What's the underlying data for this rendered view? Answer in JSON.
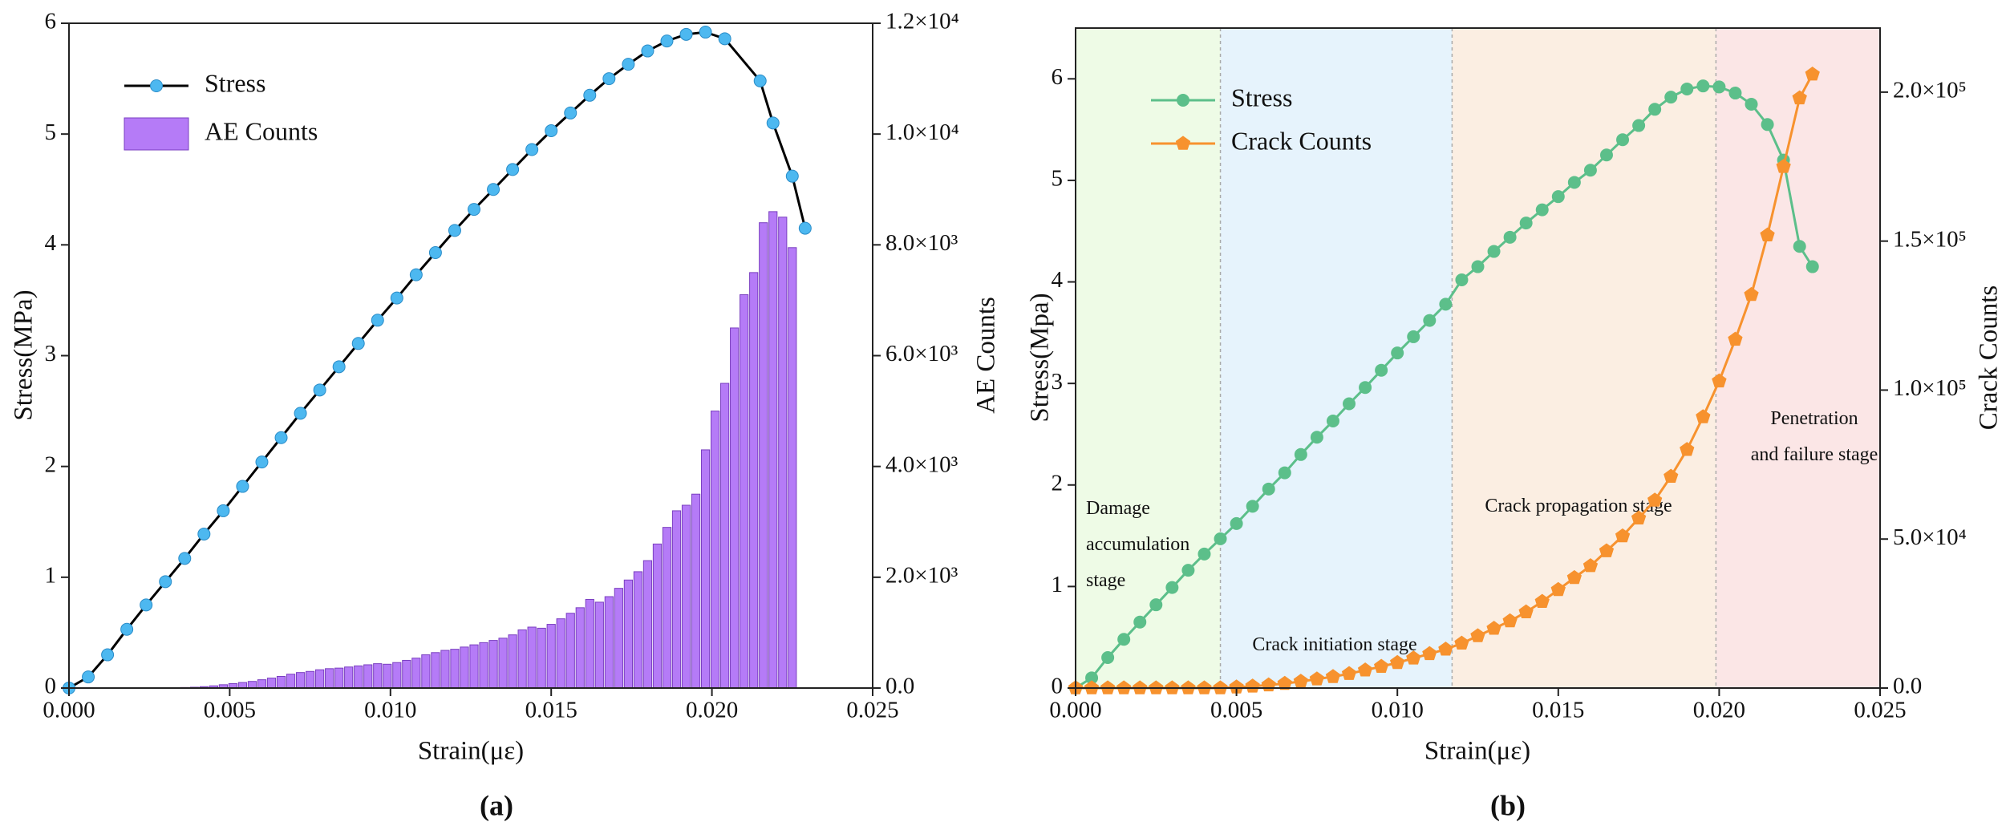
{
  "chart_data": [
    {
      "type": "combo",
      "xlabel": "Strain(με)",
      "ylabel": "Stress(MPa)",
      "y2label": "AE  Counts",
      "panel_label": "(a)",
      "xlim": [
        0,
        0.025
      ],
      "xticks": [
        {
          "value": 0,
          "label": "0.000"
        },
        {
          "value": 0.005,
          "label": "0.005"
        },
        {
          "value": 0.01,
          "label": "0.010"
        },
        {
          "value": 0.015,
          "label": "0.015"
        },
        {
          "value": 0.02,
          "label": "0.020"
        },
        {
          "value": 0.025,
          "label": "0.025"
        }
      ],
      "ylim": [
        0,
        6
      ],
      "yticks": [
        0,
        1,
        2,
        3,
        4,
        5,
        6
      ],
      "y2lim": [
        0,
        12000
      ],
      "y2ticks": [
        {
          "value": 0,
          "label": "0.0"
        },
        {
          "value": 2000,
          "label": "2.0×10³"
        },
        {
          "value": 4000,
          "label": "4.0×10³"
        },
        {
          "value": 6000,
          "label": "6.0×10³"
        },
        {
          "value": 8000,
          "label": "8.0×10³"
        },
        {
          "value": 10000,
          "label": "1.0×10⁴"
        },
        {
          "value": 12000,
          "label": "1.2×10⁴"
        }
      ],
      "legend": "upper left",
      "series": [
        {
          "name": "Stress",
          "kind": "line",
          "marker": "circle",
          "color": "#4db8f0",
          "line_color": "#000000",
          "x": [
            0,
            0.0006,
            0.0012,
            0.0018,
            0.0024,
            0.003,
            0.0036,
            0.0042,
            0.0048,
            0.0054,
            0.006,
            0.0066,
            0.0072,
            0.0078,
            0.0084,
            0.009,
            0.0096,
            0.0102,
            0.0108,
            0.0114,
            0.012,
            0.0126,
            0.0132,
            0.0138,
            0.0144,
            0.015,
            0.0156,
            0.0162,
            0.0168,
            0.0174,
            0.018,
            0.0186,
            0.0192,
            0.0198,
            0.0204,
            0.0215,
            0.0219,
            0.0225,
            0.0229
          ],
          "values": [
            0,
            0.1,
            0.3,
            0.53,
            0.75,
            0.96,
            1.17,
            1.39,
            1.6,
            1.82,
            2.04,
            2.26,
            2.48,
            2.69,
            2.9,
            3.11,
            3.32,
            3.52,
            3.73,
            3.93,
            4.13,
            4.32,
            4.5,
            4.68,
            4.86,
            5.03,
            5.19,
            5.35,
            5.5,
            5.63,
            5.75,
            5.84,
            5.9,
            5.92,
            5.86,
            5.48,
            5.1,
            4.62,
            4.15
          ]
        },
        {
          "name": "AE  Counts",
          "kind": "bar",
          "axis": "y2",
          "color": "#b57bf7",
          "edge_color": "#7a3fc0",
          "x": [
            0.0036,
            0.0039,
            0.0042,
            0.0045,
            0.0048,
            0.0051,
            0.0054,
            0.0057,
            0.006,
            0.0063,
            0.0066,
            0.0069,
            0.0072,
            0.0075,
            0.0078,
            0.0081,
            0.0084,
            0.0087,
            0.009,
            0.0093,
            0.0096,
            0.0099,
            0.0102,
            0.0105,
            0.0108,
            0.0111,
            0.0114,
            0.0117,
            0.012,
            0.0123,
            0.0126,
            0.0129,
            0.0132,
            0.0135,
            0.0138,
            0.0141,
            0.0144,
            0.0147,
            0.015,
            0.0153,
            0.0156,
            0.0159,
            0.0162,
            0.0165,
            0.0168,
            0.0171,
            0.0174,
            0.0177,
            0.018,
            0.0183,
            0.0186,
            0.0189,
            0.0192,
            0.0195,
            0.0198,
            0.0201,
            0.0204,
            0.0207,
            0.021,
            0.0213,
            0.0216,
            0.0219,
            0.0222,
            0.0225
          ],
          "values": [
            10,
            15,
            25,
            40,
            60,
            80,
            100,
            120,
            150,
            180,
            210,
            250,
            280,
            300,
            330,
            350,
            360,
            380,
            400,
            420,
            440,
            430,
            460,
            500,
            540,
            600,
            640,
            680,
            700,
            740,
            780,
            820,
            860,
            900,
            960,
            1050,
            1100,
            1080,
            1150,
            1250,
            1350,
            1450,
            1600,
            1550,
            1650,
            1800,
            1950,
            2100,
            2300,
            2600,
            2900,
            3200,
            3300,
            3500,
            4300,
            5000,
            5500,
            6500,
            7100,
            7500,
            8400,
            8600,
            8500,
            7950
          ]
        }
      ]
    },
    {
      "type": "combo",
      "xlabel": "Strain(με)",
      "ylabel": "Stress(Mpa)",
      "y2label": "Crack Counts",
      "panel_label": "(b)",
      "xlim": [
        0,
        0.025
      ],
      "xticks": [
        {
          "value": 0,
          "label": "0.000"
        },
        {
          "value": 0.005,
          "label": "0.005"
        },
        {
          "value": 0.01,
          "label": "0.010"
        },
        {
          "value": 0.015,
          "label": "0.015"
        },
        {
          "value": 0.02,
          "label": "0.020"
        },
        {
          "value": 0.025,
          "label": "0.025"
        }
      ],
      "ylim": [
        0,
        6.5
      ],
      "yticks": [
        0,
        1,
        2,
        3,
        4,
        5,
        6
      ],
      "y2lim": [
        0,
        221500
      ],
      "y2ticks": [
        {
          "value": 0,
          "label": "0.0"
        },
        {
          "value": 50000,
          "label": "5.0×10⁴"
        },
        {
          "value": 100000,
          "label": "1.0×10⁵"
        },
        {
          "value": 150000,
          "label": "1.5×10⁵"
        },
        {
          "value": 200000,
          "label": "2.0×10⁵"
        }
      ],
      "legend": "upper left",
      "stages": [
        {
          "label_lines": [
            "Damage",
            "accumulation",
            "stage"
          ],
          "range": [
            0,
            0.0045
          ],
          "color": "#eefbe6"
        },
        {
          "label_lines": [
            "Crack initiation stage"
          ],
          "range": [
            0.0045,
            0.0117
          ],
          "color": "#e6f3fc"
        },
        {
          "label_lines": [
            "Crack propagation stage"
          ],
          "range": [
            0.0117,
            0.0199
          ],
          "color": "#fbeee2"
        },
        {
          "label_lines": [
            "Penetration",
            "and failure stage"
          ],
          "range": [
            0.0199,
            0.025
          ],
          "color": "#fbe6e6"
        }
      ],
      "x": [
        0,
        0.0005,
        0.001,
        0.0015,
        0.002,
        0.0025,
        0.003,
        0.0035,
        0.004,
        0.0045,
        0.005,
        0.0055,
        0.006,
        0.0065,
        0.007,
        0.0075,
        0.008,
        0.0085,
        0.009,
        0.0095,
        0.01,
        0.0105,
        0.011,
        0.0115,
        0.012,
        0.0125,
        0.013,
        0.0135,
        0.014,
        0.0145,
        0.015,
        0.0155,
        0.016,
        0.0165,
        0.017,
        0.0175,
        0.018,
        0.0185,
        0.019,
        0.0195,
        0.02,
        0.0205,
        0.021,
        0.0215,
        0.022,
        0.0225,
        0.0229
      ],
      "series": [
        {
          "name": "Stress",
          "kind": "line",
          "marker": "circle",
          "color": "#5cbf8a",
          "line_color": "#5cbf8a",
          "values": [
            0,
            0.1,
            0.3,
            0.48,
            0.65,
            0.82,
            0.99,
            1.16,
            1.32,
            1.47,
            1.62,
            1.79,
            1.96,
            2.12,
            2.3,
            2.47,
            2.63,
            2.8,
            2.96,
            3.13,
            3.3,
            3.46,
            3.62,
            3.78,
            4.02,
            4.15,
            4.3,
            4.44,
            4.58,
            4.71,
            4.84,
            4.98,
            5.1,
            5.25,
            5.4,
            5.54,
            5.7,
            5.82,
            5.9,
            5.93,
            5.92,
            5.86,
            5.75,
            5.55,
            5.2,
            4.35,
            4.15
          ]
        },
        {
          "name": "Crack Counts",
          "kind": "line",
          "marker": "pentagon",
          "axis": "y2",
          "color": "#f7922e",
          "line_color": "#f7922e",
          "values": [
            0,
            0,
            0,
            0,
            0,
            0,
            0,
            0,
            0,
            0,
            300,
            600,
            1000,
            1500,
            2200,
            3000,
            3800,
            4800,
            6000,
            7200,
            8500,
            10000,
            11500,
            13000,
            15000,
            17500,
            20000,
            22500,
            25500,
            29000,
            33000,
            37000,
            41000,
            46000,
            51000,
            57000,
            63000,
            71000,
            80000,
            91000,
            103000,
            117000,
            132000,
            152000,
            175000,
            198000,
            206000
          ]
        }
      ]
    }
  ]
}
